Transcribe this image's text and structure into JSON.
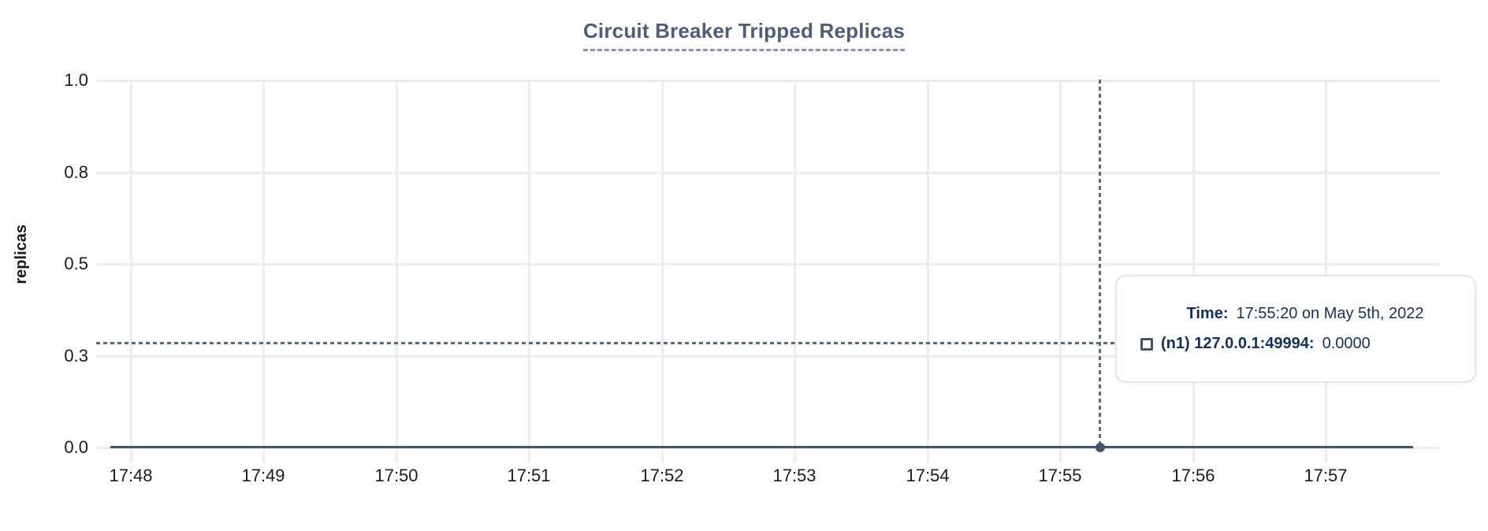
{
  "chart_data": {
    "type": "line",
    "title": "Circuit Breaker Tripped Replicas",
    "xlabel": "",
    "ylabel": "replicas",
    "x_tick_labels": [
      "17:48",
      "17:49",
      "17:50",
      "17:51",
      "17:52",
      "17:53",
      "17:54",
      "17:55",
      "17:56",
      "17:57"
    ],
    "y_tick_labels": [
      "1.0",
      "0.8",
      "0.5",
      "0.3",
      "0.0"
    ],
    "y_tick_values": [
      1.0,
      0.75,
      0.5,
      0.25,
      0.0
    ],
    "ylim": [
      0,
      1
    ],
    "grid": true,
    "legend_position": "none",
    "series": [
      {
        "name": "(n1) 127.0.0.1:49994",
        "color": "#44546a",
        "constant_value": 0.0,
        "x_start_approx": "17:47:50",
        "x_end_approx": "17:57:40"
      }
    ],
    "cursor": {
      "hover_time": "17:55:20",
      "snapped_value": 0.0,
      "crosshair_y_value_approx": 0.34
    }
  },
  "tooltip": {
    "time_label": "Time:",
    "time_value": "17:55:20 on May 5th, 2022",
    "series_label": "(n1) 127.0.0.1:49994:",
    "series_value": "0.0000"
  },
  "colors": {
    "series_line": "#44546a",
    "cursor_point": "#44546a",
    "crosshair": "#5a6b7c",
    "gridline": "#ededed",
    "title_text": "#4e5d78",
    "title_underline": "#8495b8",
    "tick_text": "#1a1a1a",
    "axis_label_text": "#1a1a1a",
    "tooltip_text": "#16305c",
    "tooltip_border": "#e3e6ec",
    "tooltip_bg": "#ffffff"
  }
}
